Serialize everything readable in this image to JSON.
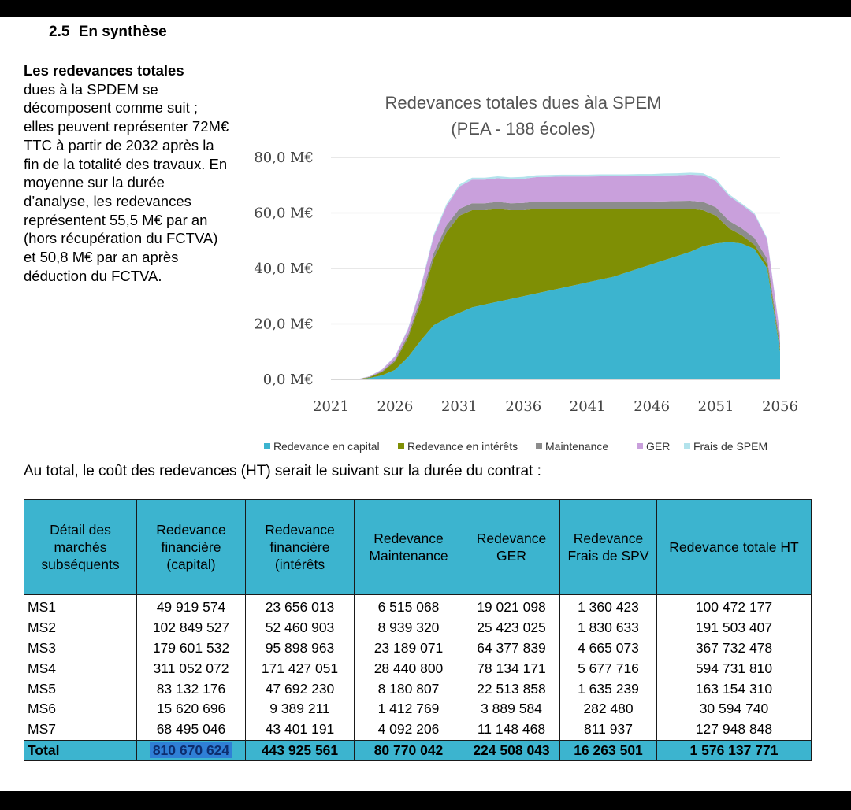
{
  "section": {
    "number": "2.5",
    "title": "En synthèse"
  },
  "intro": {
    "bold": "Les redevances totales",
    "text": "dues à la SPDEM se décomposent comme suit ; elles peuvent représenter 72M€ TTC à partir de 2032 après la fin de la totalité des travaux. En moyenne sur la durée d’analyse, les redevances représentent 55,5 M€ par an (hors récupération du FCTVA) et 50,8 M€ par an après déduction du FCTVA."
  },
  "chart_data": {
    "type": "area",
    "stacked": true,
    "title": [
      "Redevances totales dues àla SPEM",
      "(PEA - 188 écoles)"
    ],
    "x_ticks": [
      "2021",
      "2026",
      "2031",
      "2036",
      "2041",
      "2046",
      "2051",
      "2056"
    ],
    "y_ticks": [
      "0,0  M€",
      "20,0  M€",
      "40,0  M€",
      "60,0  M€",
      "80,0  M€"
    ],
    "ylim": [
      0,
      80
    ],
    "x": [
      2022,
      2023,
      2024,
      2025,
      2026,
      2027,
      2028,
      2029,
      2030,
      2031,
      2032,
      2033,
      2034,
      2035,
      2036,
      2037,
      2038,
      2039,
      2040,
      2041,
      2042,
      2043,
      2044,
      2045,
      2046,
      2047,
      2048,
      2049,
      2050,
      2051,
      2052,
      2053,
      2054,
      2055,
      2056
    ],
    "series": [
      {
        "name": "Redevance en capital",
        "color": "#3cb4cf",
        "values": [
          0,
          0,
          0.5,
          1.5,
          3.5,
          8,
          14,
          19.5,
          22,
          24,
          26,
          27,
          28,
          29,
          30,
          31,
          32,
          33,
          34,
          35,
          36,
          37,
          38.5,
          40,
          41.5,
          43,
          44.5,
          46,
          48,
          49,
          49.5,
          49,
          47,
          40,
          10
        ]
      },
      {
        "name": "Redevance en intérêts",
        "color": "#7f8f05",
        "values": [
          0,
          0,
          0.3,
          1.2,
          3,
          7,
          14,
          24,
          31,
          35,
          35,
          34,
          33.5,
          32,
          31,
          30.5,
          29.5,
          28.5,
          27.5,
          26.5,
          25.5,
          24.5,
          23,
          21.5,
          20,
          18.5,
          17,
          15.5,
          13,
          10,
          5,
          3,
          1.5,
          1.5,
          1
        ]
      },
      {
        "name": "Maintenance",
        "color": "#8c8c8c",
        "values": [
          0,
          0,
          0.1,
          0.3,
          0.6,
          1,
          1.5,
          2,
          2.5,
          2.5,
          2.5,
          2.5,
          2.5,
          2.5,
          2.6,
          2.6,
          2.6,
          2.6,
          2.6,
          2.6,
          2.6,
          2.6,
          2.6,
          2.6,
          2.6,
          2.7,
          2.8,
          2.9,
          3,
          3,
          2.7,
          2.5,
          2.5,
          2,
          2
        ]
      },
      {
        "name": "GER",
        "color": "#c9a0dc",
        "values": [
          0,
          0,
          0.2,
          0.6,
          1.2,
          2,
          3.5,
          6,
          7,
          8,
          8.5,
          8.5,
          8.5,
          8.6,
          8.7,
          8.8,
          8.9,
          9,
          9,
          9,
          9.1,
          9.1,
          9.1,
          9.2,
          9.2,
          9.3,
          9.3,
          9.4,
          9.6,
          9.5,
          9,
          8.5,
          8.5,
          7,
          3
        ]
      },
      {
        "name": "Frais de SPEM",
        "color": "#b3e3ec",
        "values": [
          0,
          0,
          0.05,
          0.1,
          0.2,
          0.3,
          0.5,
          0.6,
          0.7,
          0.7,
          0.7,
          0.7,
          0.7,
          0.7,
          0.7,
          0.7,
          0.7,
          0.7,
          0.7,
          0.7,
          0.7,
          0.7,
          0.7,
          0.7,
          0.7,
          0.7,
          0.7,
          0.7,
          0.7,
          0.7,
          0.6,
          0.5,
          0.5,
          0.4,
          0.3
        ]
      }
    ]
  },
  "summary_sentence": "Au total, le coût des redevances (HT) serait le suivant sur la durée du contrat :",
  "table": {
    "headers": [
      "Détail des marchés subséquents",
      "Redevance financière (capital)",
      "Redevance financière (intérêts",
      "Redevance Maintenance",
      "Redevance GER",
      "Redevance Frais de SPV",
      "Redevance totale HT"
    ],
    "rows": [
      [
        "MS1",
        "49 919 574",
        "23 656 013",
        "6 515 068",
        "19 021 098",
        "1 360 423",
        "100 472 177"
      ],
      [
        "MS2",
        "102 849 527",
        "52 460 903",
        "8 939 320",
        "25 423 025",
        "1 830 633",
        "191 503 407"
      ],
      [
        "MS3",
        "179 601 532",
        "95 898 963",
        "23 189 071",
        "64 377 839",
        "4 665 073",
        "367 732 478"
      ],
      [
        "MS4",
        "311 052 072",
        "171 427 051",
        "28 440 800",
        "78 134 171",
        "5 677 716",
        "594 731 810"
      ],
      [
        "MS5",
        "83 132 176",
        "47 692 230",
        "8 180 807",
        "22 513 858",
        "1 635 239",
        "163 154 310"
      ],
      [
        "MS6",
        "15 620 696",
        "9 389 211",
        "1 412 769",
        "3 889 584",
        "282 480",
        "30 594 740"
      ],
      [
        "MS7",
        "68 495 046",
        "43 401 191",
        "4 092 206",
        "11 148 468",
        "811 937",
        "127 948 848"
      ]
    ],
    "total": [
      "Total",
      "810 670 624",
      "443 925 561",
      "80 770 042",
      "224 508 043",
      "16 263 501",
      "1 576 137 771"
    ]
  }
}
